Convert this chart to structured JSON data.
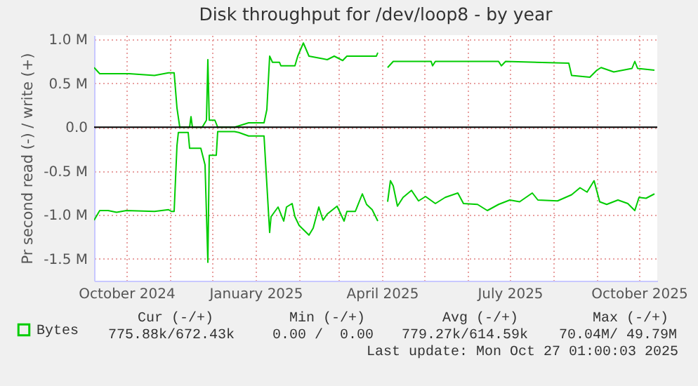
{
  "chart_data": {
    "type": "line",
    "title": "Disk throughput for /dev/loop8 - by year",
    "ylabel": "Pr second read (-) / write (+)",
    "xlim": [
      "2024-09-08",
      "2025-10-14"
    ],
    "xticks": [
      {
        "value": "2024-10-01",
        "label": "October 2024"
      },
      {
        "value": "2024-11-01",
        "label": null
      },
      {
        "value": "2024-12-01",
        "label": null
      },
      {
        "value": "2025-01-01",
        "label": "January 2025"
      },
      {
        "value": "2025-02-01",
        "label": null
      },
      {
        "value": "2025-03-01",
        "label": null
      },
      {
        "value": "2025-04-01",
        "label": "April 2025"
      },
      {
        "value": "2025-05-01",
        "label": null
      },
      {
        "value": "2025-06-01",
        "label": null
      },
      {
        "value": "2025-07-01",
        "label": "July 2025"
      },
      {
        "value": "2025-08-01",
        "label": null
      },
      {
        "value": "2025-09-01",
        "label": null
      },
      {
        "value": "2025-10-01",
        "label": "October 2025"
      }
    ],
    "ylim": [
      -1.75,
      1.05
    ],
    "yticks": [
      {
        "value": -1.5,
        "label": "-1.5 M"
      },
      {
        "value": -1,
        "label": "-1.0 M"
      },
      {
        "value": -0.5,
        "label": "-0.5 M"
      },
      {
        "value": 0,
        "label": "0.0"
      },
      {
        "value": 0.5,
        "label": "0.5 M"
      },
      {
        "value": 1,
        "label": "1.0 M"
      }
    ],
    "grid": true,
    "legend": "bottom left",
    "ref_lines": [
      {
        "axis": "y",
        "value": 0,
        "color": "#000000"
      }
    ],
    "series": [
      {
        "name": "Bytes",
        "color": "#00cc00",
        "x": [
          "2024-09-08",
          "2024-09-12",
          "2024-10-03",
          "2024-10-21",
          "2024-10-31",
          "2024-11-04",
          "2024-11-06",
          "2024-11-08",
          "2024-11-15",
          "2024-11-16",
          "2024-11-17",
          "2024-11-24",
          "2024-11-27",
          "2024-11-28",
          "2024-11-29",
          "2024-12-03",
          "2024-12-05",
          "2024-12-17",
          "2024-12-27",
          "2025-01-07",
          "2025-01-09",
          "2025-01-11",
          "2025-01-13",
          "2025-01-18",
          "2025-01-19",
          "2025-01-29",
          "2025-01-31",
          "2025-02-04",
          "2025-02-08",
          "2025-02-18",
          "2025-02-21",
          "2025-02-26",
          "2025-03-04",
          "2025-03-07",
          "2025-03-28",
          "2025-03-29",
          "2025-04-02",
          "2025-04-05",
          "2025-04-09",
          "2025-05-06",
          "2025-05-07",
          "2025-05-09",
          "2025-06-23",
          "2025-06-25",
          "2025-06-28",
          "2025-08-12",
          "2025-08-14",
          "2025-08-27",
          "2025-09-01",
          "2025-09-04",
          "2025-09-13",
          "2025-09-26",
          "2025-09-28",
          "2025-09-30",
          "2025-10-12"
        ],
        "values": [
          0.68,
          0.61,
          0.61,
          0.59,
          0.62,
          0.62,
          0.22,
          0,
          0,
          0.12,
          0,
          0,
          0.08,
          0.77,
          0.08,
          0.08,
          0,
          0,
          0.05,
          0.05,
          0.2,
          0.81,
          0.74,
          0.74,
          0.7,
          0.7,
          0.81,
          0.96,
          0.81,
          0.78,
          0.77,
          0.81,
          0.76,
          0.81,
          0.81,
          0.85,
          null,
          0.68,
          0.75,
          0.75,
          0.7,
          0.75,
          0.75,
          0.7,
          0.75,
          0.73,
          0.59,
          0.57,
          0.65,
          0.68,
          0.63,
          0.67,
          0.75,
          0.67,
          0.65
        ]
      },
      {
        "color": "#00cc00",
        "x": [
          "2024-09-08",
          "2024-09-12",
          "2024-09-18",
          "2024-09-24",
          "2024-10-01",
          "2024-10-21",
          "2024-10-31",
          "2024-11-02",
          "2024-11-04",
          "2024-11-06",
          "2024-11-07",
          "2024-11-14",
          "2024-11-15",
          "2024-11-23",
          "2024-11-26",
          "2024-11-28",
          "2024-11-29",
          "2024-12-04",
          "2024-12-05",
          "2024-12-17",
          "2024-12-20",
          "2024-12-27",
          "2025-01-07",
          "2025-01-11",
          "2025-01-12",
          "2025-01-17",
          "2025-01-21",
          "2025-01-23",
          "2025-01-27",
          "2025-01-29",
          "2025-02-01",
          "2025-02-08",
          "2025-02-11",
          "2025-02-15",
          "2025-02-18",
          "2025-02-21",
          "2025-02-28",
          "2025-03-05",
          "2025-03-07",
          "2025-03-13",
          "2025-03-18",
          "2025-03-21",
          "2025-03-25",
          "2025-03-29",
          "2025-04-02",
          "2025-04-05",
          "2025-04-07",
          "2025-04-09",
          "2025-04-12",
          "2025-04-16",
          "2025-04-22",
          "2025-04-27",
          "2025-05-02",
          "2025-05-09",
          "2025-05-16",
          "2025-05-25",
          "2025-05-29",
          "2025-06-08",
          "2025-06-15",
          "2025-06-23",
          "2025-07-01",
          "2025-07-08",
          "2025-07-17",
          "2025-07-21",
          "2025-08-04",
          "2025-08-14",
          "2025-08-20",
          "2025-08-25",
          "2025-08-30",
          "2025-09-03",
          "2025-09-08",
          "2025-09-16",
          "2025-09-23",
          "2025-09-28",
          "2025-10-01",
          "2025-10-06",
          "2025-10-12"
        ],
        "values": [
          -1.06,
          -0.95,
          -0.95,
          -0.97,
          -0.95,
          -0.96,
          -0.94,
          -0.96,
          -0.96,
          -0.21,
          -0.06,
          -0.06,
          -0.24,
          -0.24,
          -0.43,
          -1.54,
          -0.32,
          -0.32,
          -0.05,
          -0.05,
          -0.06,
          -0.1,
          -0.1,
          -1.2,
          -1.02,
          -0.91,
          -1.07,
          -0.91,
          -0.87,
          -1.02,
          -1.12,
          -1.23,
          -1.15,
          -0.91,
          -1.06,
          -0.99,
          -0.9,
          -1.07,
          -0.96,
          -0.96,
          -0.76,
          -0.88,
          -0.94,
          -1.07,
          null,
          -0.85,
          -0.61,
          -0.67,
          -0.9,
          -0.8,
          -0.72,
          -0.84,
          -0.79,
          -0.87,
          -0.8,
          -0.75,
          -0.87,
          -0.88,
          -0.95,
          -0.88,
          -0.83,
          -0.85,
          -0.75,
          -0.83,
          -0.84,
          -0.77,
          -0.69,
          -0.74,
          -0.61,
          -0.85,
          -0.88,
          -0.83,
          -0.87,
          -0.95,
          -0.8,
          -0.81,
          -0.76
        ]
      }
    ],
    "annotations": [
      "Cur (-/+)",
      "Min (-/+)",
      "Avg (-/+)",
      "Max (-/+)",
      "775.88k/672.43k",
      "0.00 /  0.00",
      "779.27k/614.59k",
      "70.04M/ 49.79M",
      "Last update: Mon Oct 27 01:00:03 2025"
    ]
  }
}
